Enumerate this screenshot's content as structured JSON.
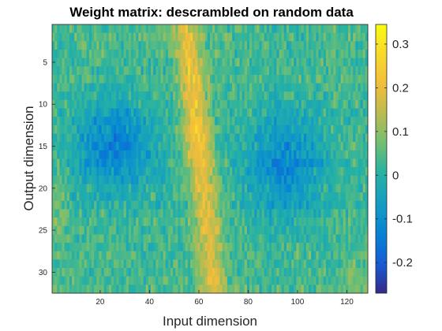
{
  "chart_data": {
    "type": "heatmap",
    "title": "Weight matrix: descrambled on random data",
    "xlabel": "Input dimension",
    "ylabel": "Output dimension",
    "x_range": [
      1,
      128
    ],
    "y_range": [
      1,
      32
    ],
    "x_ticks": [
      20,
      40,
      60,
      80,
      100,
      120
    ],
    "y_ticks": [
      5,
      10,
      15,
      20,
      25,
      30
    ],
    "y_direction": "reversed",
    "colorbar": {
      "colormap": "parula",
      "range": [
        -0.27,
        0.345
      ],
      "ticks": [
        0.3,
        0.2,
        0.1,
        0,
        -0.1,
        -0.2
      ],
      "tick_labels": [
        "0.3",
        "0.2",
        "0.1",
        "0",
        "-0.1",
        "-0.2"
      ],
      "placement": "right"
    },
    "structure": {
      "positive_band": "diagonal ridge from input ~55 (row 1) to ~66 (row 32), values ~0.15–0.25",
      "negative_regions": "two blobs around rows 10–22 centered near input ~25 and ~95, values ~-0.1 to -0.25",
      "background_mean": 0.03,
      "noise": "per-cell random variation"
    }
  }
}
